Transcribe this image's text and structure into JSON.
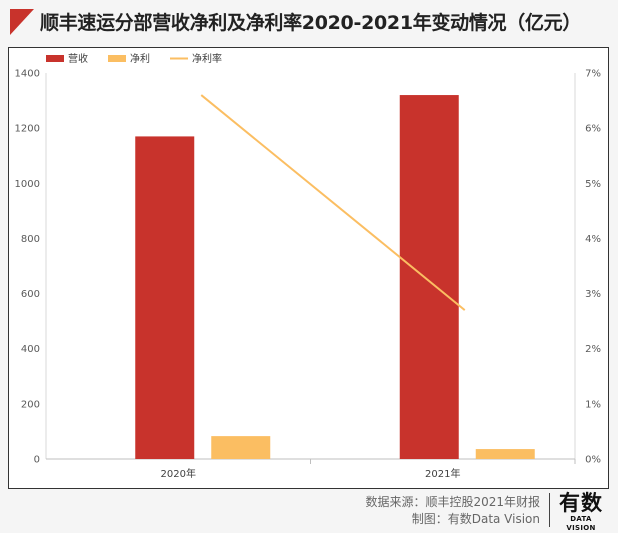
{
  "title": "顺丰速运分部营收净利及净利率2020-2021年变动情况（亿元）",
  "footer": {
    "source": "数据来源：顺丰控股2021年财报",
    "made_by": "制图：有数Data Vision",
    "logo_main": "有数",
    "logo_sub": "DATA VISION"
  },
  "colors": {
    "revenue": "#c8332c",
    "net_profit": "#fbbe62",
    "net_margin": "#fbbe62"
  },
  "chart_data": {
    "type": "bar",
    "categories": [
      "2020年",
      "2021年"
    ],
    "series": [
      {
        "name": "营收",
        "type": "bar",
        "axis": "left",
        "values": [
          1170,
          1320
        ]
      },
      {
        "name": "净利",
        "type": "bar",
        "axis": "left",
        "values": [
          83,
          36
        ]
      },
      {
        "name": "净利率",
        "type": "line",
        "axis": "right",
        "values": [
          6.6,
          2.7
        ]
      }
    ],
    "y_left": {
      "ylim": [
        0,
        1400
      ],
      "ticks": [
        "0",
        "200",
        "400",
        "600",
        "800",
        "1000",
        "1200",
        "1400"
      ]
    },
    "y_right": {
      "ylim": [
        0,
        7
      ],
      "ticks": [
        "0%",
        "1%",
        "2%",
        "3%",
        "4%",
        "5%",
        "6%",
        "7%"
      ]
    },
    "legend_position": "top-left",
    "grid": false
  }
}
